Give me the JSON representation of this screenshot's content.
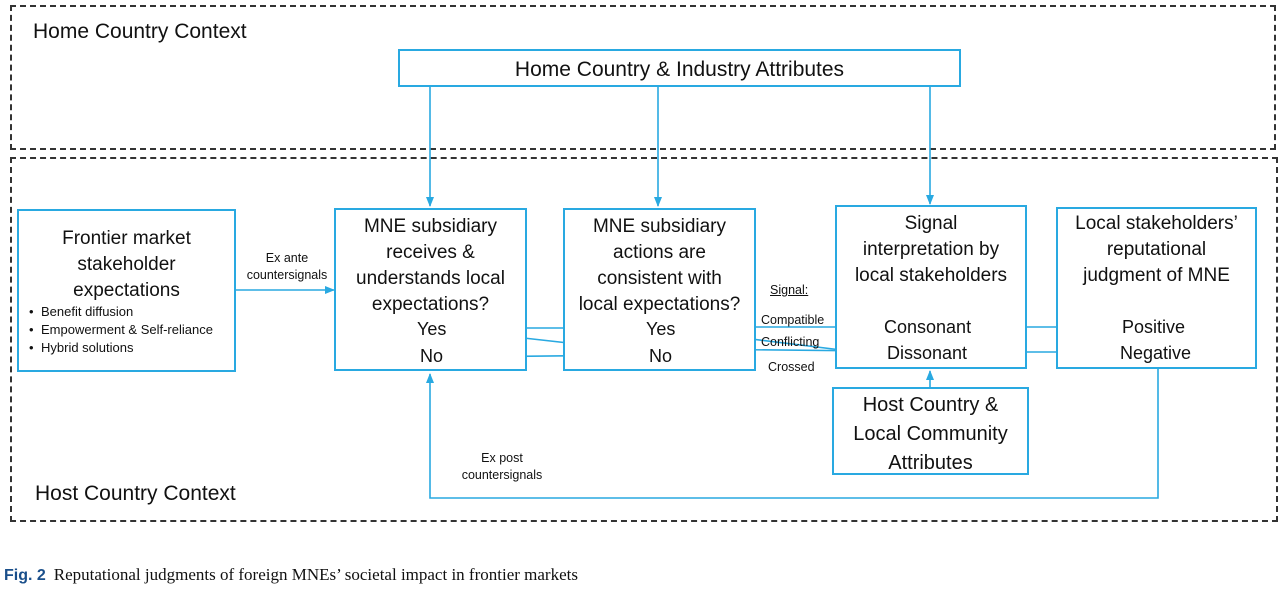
{
  "contexts": {
    "home": "Home Country Context",
    "host": "Host Country Context"
  },
  "boxes": {
    "home_attributes": "Home Country & Industry Attributes",
    "frontier": {
      "lines": [
        "Frontier market",
        "stakeholder",
        "expectations"
      ],
      "bullets": [
        "Benefit diffusion",
        "Empowerment & Self-reliance",
        "Hybrid solutions"
      ]
    },
    "receives": {
      "lines": [
        "MNE subsidiary",
        "receives &",
        "understands local",
        "expectations?"
      ],
      "yes": "Yes",
      "no": "No"
    },
    "actions": {
      "lines": [
        "MNE subsidiary",
        "actions are",
        "consistent with",
        "local expectations?"
      ],
      "yes": "Yes",
      "no": "No"
    },
    "signal": {
      "lines": [
        "Signal",
        "interpretation by",
        "local stakeholders"
      ],
      "consonant": "Consonant",
      "dissonant": "Dissonant"
    },
    "judgment": {
      "lines": [
        "Local stakeholders’",
        "reputational",
        "judgment of MNE"
      ],
      "positive": "Positive",
      "negative": "Negative"
    },
    "host_attributes": {
      "lines": [
        "Host Country &",
        "Local Community",
        "Attributes"
      ]
    }
  },
  "labels": {
    "ex_ante": [
      "Ex ante",
      "countersignals"
    ],
    "ex_post": [
      "Ex post",
      "countersignals"
    ],
    "signal_heading": "Signal:",
    "compatible": "Compatible",
    "conflicting": "Conflicting",
    "crossed": "Crossed"
  },
  "caption": {
    "fig": "Fig. 2",
    "text": "Reputational judgments of foreign MNEs’ societal impact in frontier markets"
  },
  "colors": {
    "accent": "#29a9e1",
    "frame": "#333333",
    "text": "#111111",
    "fig_label": "#1a4f8b"
  }
}
